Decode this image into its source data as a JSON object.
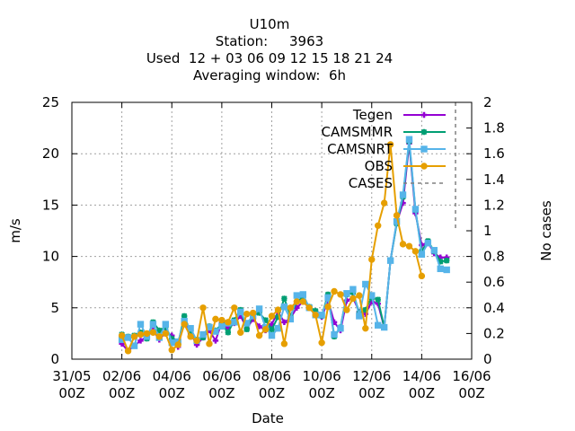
{
  "chart_data": {
    "type": "line",
    "title_lines": [
      "U10m",
      "Station:     3963",
      "Used  12 + 03 06 09 12 15 18 21 24",
      "Averaging window:  6h"
    ],
    "xlabel": "Date",
    "ylabel": "m/s",
    "y2label": "No cases",
    "xlim": [
      "2021-05-31T00:00",
      "2021-06-16T00:00"
    ],
    "ylim": [
      0,
      25
    ],
    "y2lim": [
      0,
      2
    ],
    "x_tick_labels": [
      {
        "date": "2021-05-31T00:00",
        "line1": "31/05",
        "line2": "00Z"
      },
      {
        "date": "2021-06-02T00:00",
        "line1": "02/06",
        "line2": "00Z"
      },
      {
        "date": "2021-06-04T00:00",
        "line1": "04/06",
        "line2": "00Z"
      },
      {
        "date": "2021-06-06T00:00",
        "line1": "06/06",
        "line2": "00Z"
      },
      {
        "date": "2021-06-08T00:00",
        "line1": "08/06",
        "line2": "00Z"
      },
      {
        "date": "2021-06-10T00:00",
        "line1": "10/06",
        "line2": "00Z"
      },
      {
        "date": "2021-06-12T00:00",
        "line1": "12/06",
        "line2": "00Z"
      },
      {
        "date": "2021-06-14T00:00",
        "line1": "14/06",
        "line2": "00Z"
      },
      {
        "date": "2021-06-16T00:00",
        "line1": "16/06",
        "line2": "00Z"
      }
    ],
    "y_ticks": [
      0,
      5,
      10,
      15,
      20,
      25
    ],
    "y2_ticks": [
      "0",
      "0.2",
      "0.4",
      "0.6",
      "0.8",
      "1",
      "1.2",
      "1.4",
      "1.6",
      "1.8",
      "2"
    ],
    "grid": true,
    "legend_position": "top-right",
    "x": [
      "2021-06-02T00:00",
      "2021-06-02T06:00",
      "2021-06-02T12:00",
      "2021-06-02T18:00",
      "2021-06-03T00:00",
      "2021-06-03T06:00",
      "2021-06-03T12:00",
      "2021-06-03T18:00",
      "2021-06-04T00:00",
      "2021-06-04T06:00",
      "2021-06-04T12:00",
      "2021-06-04T18:00",
      "2021-06-05T00:00",
      "2021-06-05T06:00",
      "2021-06-05T12:00",
      "2021-06-05T18:00",
      "2021-06-06T00:00",
      "2021-06-06T06:00",
      "2021-06-06T12:00",
      "2021-06-06T18:00",
      "2021-06-07T00:00",
      "2021-06-07T06:00",
      "2021-06-07T12:00",
      "2021-06-07T18:00",
      "2021-06-08T00:00",
      "2021-06-08T06:00",
      "2021-06-08T12:00",
      "2021-06-08T18:00",
      "2021-06-09T00:00",
      "2021-06-09T06:00",
      "2021-06-09T12:00",
      "2021-06-09T18:00",
      "2021-06-10T00:00",
      "2021-06-10T06:00",
      "2021-06-10T12:00",
      "2021-06-10T18:00",
      "2021-06-11T00:00",
      "2021-06-11T06:00",
      "2021-06-11T12:00",
      "2021-06-11T18:00",
      "2021-06-12T00:00",
      "2021-06-12T06:00",
      "2021-06-12T12:00",
      "2021-06-12T18:00",
      "2021-06-13T00:00",
      "2021-06-13T06:00",
      "2021-06-13T12:00",
      "2021-06-13T18:00",
      "2021-06-14T00:00",
      "2021-06-14T06:00",
      "2021-06-14T12:00",
      "2021-06-14T18:00",
      "2021-06-15T00:00",
      "2021-06-15T06:00",
      "2021-06-15T12:00"
    ],
    "series": [
      {
        "name": "Tegen",
        "color": "#9400d3",
        "marker": "plus",
        "values": [
          1.5,
          0.8,
          1.3,
          1.8,
          2.2,
          2.8,
          1.9,
          2.6,
          2.3,
          1.2,
          3.8,
          2.5,
          1.4,
          2.1,
          2.8,
          1.8,
          3.6,
          3.0,
          3.5,
          4.2,
          3.0,
          3.9,
          3.2,
          2.8,
          3.4,
          4.6,
          3.6,
          4.0,
          5.0,
          5.6,
          5.0,
          4.6,
          4.1,
          5.7,
          3.6,
          2.8,
          5.7,
          6.0,
          4.6,
          4.4,
          5.6,
          5.4,
          3.1,
          9.6,
          13.3,
          15.2,
          21.0,
          14.2,
          11.1,
          11.4,
          10.3,
          9.9,
          9.9,
          0,
          0
        ],
        "count": 53
      },
      {
        "name": "CAMSMMR",
        "color": "#009e73",
        "marker": "star",
        "values": [
          2.4,
          2.2,
          2.3,
          2.6,
          2.0,
          3.6,
          2.8,
          3.1,
          2.0,
          1.5,
          4.2,
          2.6,
          1.9,
          2.1,
          3.2,
          2.8,
          3.4,
          2.6,
          3.8,
          4.8,
          2.9,
          4.3,
          4.5,
          3.8,
          2.9,
          4.1,
          5.9,
          4.2,
          5.6,
          6.0,
          5.1,
          4.7,
          4.2,
          6.3,
          2.2,
          3.1,
          6.3,
          6.5,
          4.5,
          4.8,
          6.0,
          5.8,
          3.1,
          9.6,
          13.2,
          15.8,
          21.2,
          14.5,
          10.5,
          11.5,
          10.5,
          9.5,
          9.6,
          0,
          0
        ],
        "count": 53
      },
      {
        "name": "CAMSNRT",
        "color": "#56b4e9",
        "marker": "box",
        "values": [
          1.9,
          2.1,
          1.3,
          3.4,
          2.2,
          3.4,
          2.1,
          3.4,
          1.6,
          1.7,
          3.7,
          3.0,
          1.8,
          2.4,
          3.1,
          2.7,
          3.2,
          3.5,
          3.6,
          4.6,
          3.5,
          4.2,
          4.9,
          3.1,
          2.3,
          3.0,
          5.1,
          3.9,
          6.2,
          6.3,
          5.0,
          4.3,
          4.3,
          6.0,
          2.4,
          3.0,
          6.4,
          6.8,
          4.2,
          7.3,
          6.2,
          3.3,
          3.1,
          9.6,
          13.4,
          16.0,
          21.4,
          14.6,
          10.2,
          11.3,
          10.6,
          8.8,
          8.7,
          0,
          0
        ],
        "count": 53
      },
      {
        "name": "OBS",
        "color": "#e69f00",
        "marker": "circle",
        "values": [
          2.3,
          0.8,
          2.2,
          2.4,
          2.5,
          2.6,
          2.2,
          2.5,
          0.9,
          1.4,
          3.4,
          2.2,
          1.8,
          5.0,
          1.5,
          3.9,
          3.8,
          3.6,
          5.0,
          2.6,
          4.4,
          4.5,
          2.3,
          2.9,
          4.2,
          4.8,
          1.5,
          5.0,
          5.6,
          5.6,
          5.0,
          4.3,
          1.6,
          5.1,
          6.6,
          6.3,
          4.8,
          5.9,
          6.2,
          3.0,
          9.7,
          13.0,
          15.2,
          20.9,
          14.0,
          11.2,
          11.0,
          10.5,
          8.1,
          0,
          0,
          0,
          0,
          0,
          0
        ],
        "count": 49
      },
      {
        "name": "CASES",
        "color": "#808080",
        "style": "dashed",
        "axis": "y2"
      }
    ]
  }
}
